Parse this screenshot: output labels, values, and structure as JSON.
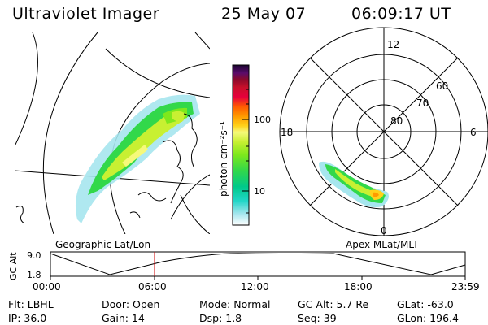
{
  "header": {
    "instrument": "Ultraviolet Imager",
    "date": "25 May 07",
    "time": "06:09:17 UT"
  },
  "geo_panel": {
    "label": "Geographic Lat/Lon"
  },
  "colorbar": {
    "unit_label": "photon cm⁻²s⁻¹",
    "ticks": [
      "100",
      "10"
    ],
    "scale": "log",
    "colors": [
      "#000000",
      "#2a0b4f",
      "#5a0b6b",
      "#8a0a2c",
      "#c8102a",
      "#e6003c",
      "#ff5a00",
      "#ff9a00",
      "#ffd21a",
      "#f6f97a",
      "#c8f032",
      "#7ee81c",
      "#32d84a",
      "#00c98a",
      "#22d6c8",
      "#6ae1e3",
      "#a6e6ee",
      "#ffffff"
    ]
  },
  "polar_panel": {
    "label": "Apex MLat/MLT",
    "mlt_labels": [
      "12",
      "18",
      "6",
      "0"
    ],
    "lat_labels": [
      "60",
      "70",
      "80"
    ]
  },
  "altitude_plot": {
    "ylabel": "GC Alt",
    "yticks": [
      "9.0",
      "1.8"
    ],
    "xticks": [
      "00:00",
      "06:00",
      "12:00",
      "18:00",
      "23:59"
    ],
    "current_time_marker": "06:09",
    "marker_color": "#cc0000"
  },
  "info": {
    "flt": "Flt: LBHL",
    "ip": "IP: 36.0",
    "door": "Door: Open",
    "gain": "Gain: 14",
    "mode": "Mode: Normal",
    "dsp": "Dsp:     1.8",
    "gc_alt": "GC Alt: 5.7 Re",
    "seq": "Seq: 39",
    "glat": "GLat: -63.0",
    "glon": "GLon: 196.4"
  }
}
